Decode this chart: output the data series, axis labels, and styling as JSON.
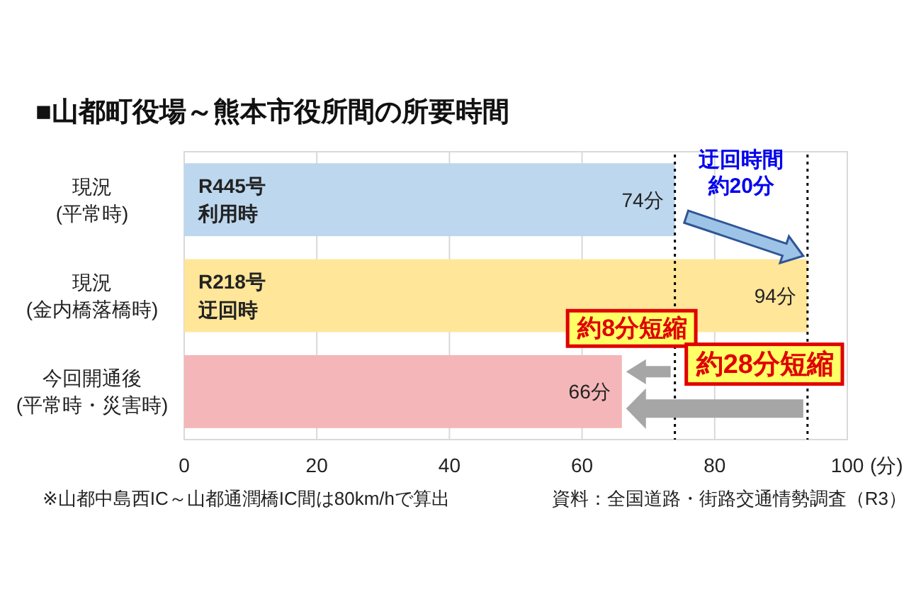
{
  "chart_data": {
    "type": "bar",
    "orientation": "horizontal",
    "title": "■山都町役場～熊本市役所間の所要時間",
    "categories": [
      "現況\n(平常時)",
      "現況\n(金内橋落橋時)",
      "今回開通後\n(平常時・災害時)"
    ],
    "values": [
      74,
      94,
      66
    ],
    "colors": [
      "#bdd7ee",
      "#ffe699",
      "#f4b6b8"
    ],
    "value_labels": [
      "74分",
      "94分",
      "66分"
    ],
    "xlim": [
      0,
      100
    ],
    "xticks": [
      0,
      20,
      40,
      60,
      80,
      100
    ],
    "xlabel": "(分)",
    "grid": "x",
    "ref_lines": [
      {
        "axis": "x",
        "value": 74,
        "line_style": "dotted",
        "color": "#000000"
      },
      {
        "axis": "x",
        "value": 94,
        "line_style": "dotted",
        "color": "#000000"
      }
    ],
    "annotations": [
      "R445号利用時",
      "R218号迂回時",
      "迂回時間約20分",
      "約8分短縮",
      "約28分短縮",
      "※山都中島西IC～山都通潤橋IC間は80km/hで算出",
      "資料：全国道路・街路交通情勢調査（R3）"
    ]
  }
}
